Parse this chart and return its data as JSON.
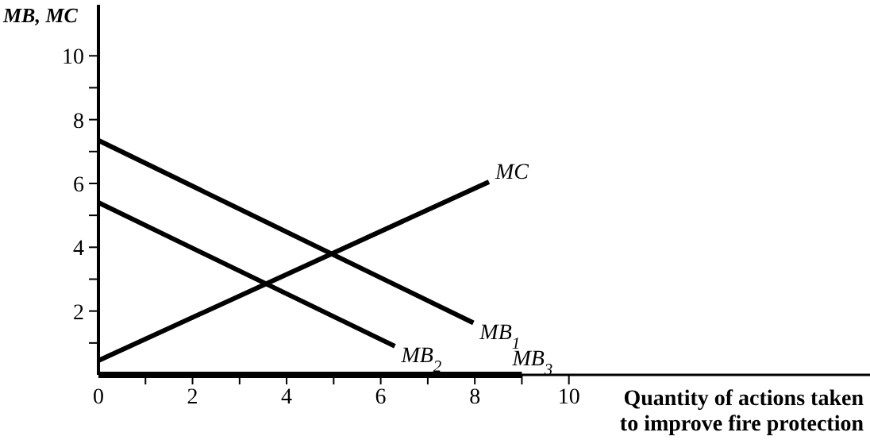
{
  "chart_data": {
    "type": "line",
    "xlabel": "Quantity of actions taken\nto improve fire protection",
    "ylabel": "MB, MC",
    "xlim": [
      0,
      16.4
    ],
    "ylim": [
      0,
      11.6
    ],
    "xticks": [
      {
        "value": 0,
        "label": "0"
      },
      {
        "value": 1,
        "label": null
      },
      2,
      {
        "value": 3,
        "label": null
      },
      4,
      {
        "value": 5,
        "label": null
      },
      6,
      {
        "value": 7,
        "label": null
      },
      8,
      {
        "value": 9,
        "label": null
      },
      10
    ],
    "yticks": [
      {
        "value": 1,
        "label": null
      },
      2,
      {
        "value": 3,
        "label": null
      },
      4,
      {
        "value": 5,
        "label": null
      },
      6,
      {
        "value": 7,
        "label": null
      },
      8,
      {
        "value": 9,
        "label": null
      },
      10
    ],
    "grid": false,
    "marker": "none",
    "line_style": "solid",
    "series": [
      {
        "name": "MB$_{1}$",
        "color": "#000000",
        "x": [
          0,
          7.97
        ],
        "values": [
          7.35,
          1.63
        ]
      },
      {
        "name": "MB$_{2}$",
        "color": "#000000",
        "x": [
          0,
          6.3
        ],
        "values": [
          5.4,
          0.9
        ]
      },
      {
        "name": "MB$_{3}$",
        "color": "#000000",
        "x": [
          0,
          9
        ],
        "values": [
          0,
          0
        ]
      },
      {
        "name": "MC",
        "color": "#000000",
        "x": [
          0,
          8.3
        ],
        "values": [
          0.45,
          6.05
        ]
      }
    ]
  }
}
